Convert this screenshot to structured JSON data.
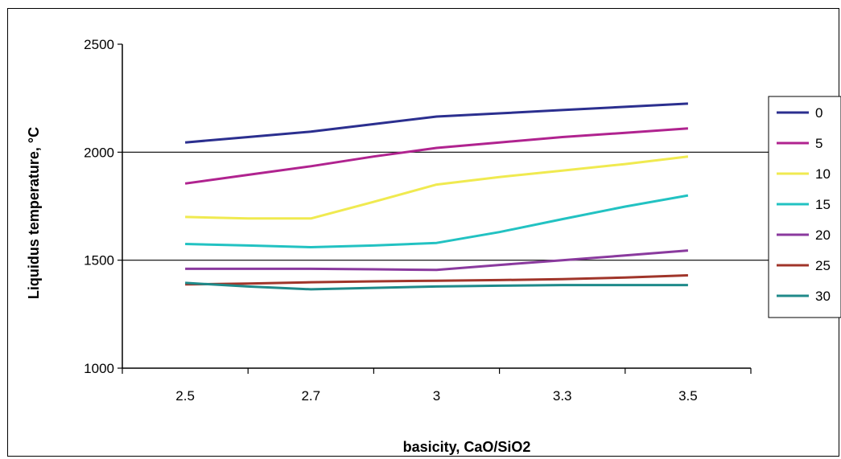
{
  "chart_data": {
    "type": "line",
    "categories": [
      "2.5",
      "2.7",
      "3",
      "3.3",
      "3.5"
    ],
    "xlabel": "basicity, CaO/SiO2",
    "ylabel": "Liquidus temperature,  °C",
    "ylim": [
      1000,
      2500
    ],
    "yticks": [
      "1000",
      "1500",
      "2000",
      "2500"
    ],
    "grid": "horizontal lines at 1500 and 2000",
    "legend": "right",
    "series": [
      {
        "name": "0",
        "color": "#2b2f8f",
        "points": [
          [
            0,
            2045
          ],
          [
            0.5,
            2070
          ],
          [
            1,
            2095
          ],
          [
            1.5,
            2130
          ],
          [
            2,
            2165
          ],
          [
            2.5,
            2180
          ],
          [
            3,
            2195
          ],
          [
            3.5,
            2210
          ],
          [
            4,
            2225
          ]
        ]
      },
      {
        "name": "5",
        "color": "#b0238f",
        "points": [
          [
            0,
            1855
          ],
          [
            0.5,
            1895
          ],
          [
            1,
            1935
          ],
          [
            1.5,
            1980
          ],
          [
            2,
            2020
          ],
          [
            2.5,
            2045
          ],
          [
            3,
            2070
          ],
          [
            3.5,
            2090
          ],
          [
            4,
            2110
          ]
        ]
      },
      {
        "name": "10",
        "color": "#f0ea50",
        "points": [
          [
            0,
            1700
          ],
          [
            0.5,
            1693
          ],
          [
            1,
            1693
          ],
          [
            1.5,
            1770
          ],
          [
            2,
            1850
          ],
          [
            2.5,
            1885
          ],
          [
            3,
            1915
          ],
          [
            3.5,
            1945
          ],
          [
            4,
            1980
          ]
        ]
      },
      {
        "name": "15",
        "color": "#22c2c2",
        "points": [
          [
            0,
            1575
          ],
          [
            0.5,
            1568
          ],
          [
            1,
            1560
          ],
          [
            1.5,
            1568
          ],
          [
            2,
            1580
          ],
          [
            2.5,
            1630
          ],
          [
            3,
            1690
          ],
          [
            3.5,
            1748
          ],
          [
            4,
            1800
          ]
        ]
      },
      {
        "name": "20",
        "color": "#8a3a9e",
        "points": [
          [
            0,
            1460
          ],
          [
            0.5,
            1460
          ],
          [
            1,
            1460
          ],
          [
            1.5,
            1458
          ],
          [
            2,
            1455
          ],
          [
            2.5,
            1478
          ],
          [
            3,
            1500
          ],
          [
            3.5,
            1522
          ],
          [
            4,
            1545
          ]
        ]
      },
      {
        "name": "25",
        "color": "#a0352a",
        "points": [
          [
            0,
            1388
          ],
          [
            0.5,
            1392
          ],
          [
            1,
            1398
          ],
          [
            1.5,
            1402
          ],
          [
            2,
            1405
          ],
          [
            2.5,
            1408
          ],
          [
            3,
            1412
          ],
          [
            3.5,
            1420
          ],
          [
            4,
            1430
          ]
        ]
      },
      {
        "name": "30",
        "color": "#1f8a8a",
        "points": [
          [
            0,
            1395
          ],
          [
            0.5,
            1378
          ],
          [
            1,
            1365
          ],
          [
            1.5,
            1372
          ],
          [
            2,
            1378
          ],
          [
            2.5,
            1382
          ],
          [
            3,
            1385
          ],
          [
            3.5,
            1385
          ],
          [
            4,
            1385
          ]
        ]
      }
    ]
  }
}
